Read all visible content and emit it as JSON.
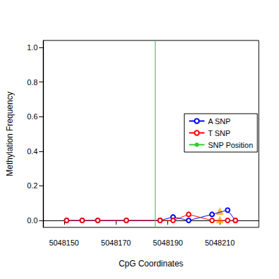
{
  "chart_data": {
    "type": "line",
    "x_label": "CpG Coordinates",
    "y_label": "Methylation Frequency",
    "x": [
      5048151,
      5048157,
      5048163,
      5048174,
      5048187,
      5048192,
      5048198,
      5048207,
      5048213,
      5048216
    ],
    "series": [
      {
        "name": "A SNP",
        "color": "#0000ff",
        "marker": "open_circle",
        "values": [
          0,
          0,
          0,
          0,
          0,
          0.02,
          0,
          0.035,
          0.06,
          0
        ]
      },
      {
        "name": "T SNP",
        "color": "#ff0000",
        "marker": "open_circle",
        "values": [
          0,
          0,
          0,
          0,
          0,
          0,
          0.035,
          0,
          0,
          0
        ]
      },
      {
        "type": "scatter",
        "color": "#ffa500",
        "marker": "triangle",
        "x": [
          5048210,
          5048210
        ],
        "values": [
          0.055,
          0.005
        ]
      }
    ],
    "snp_position": {
      "name": "SNP Position",
      "color": "#33cc33",
      "x": 5048185
    },
    "xlim": [
      5048142,
      5048225
    ],
    "xticks": [
      5048150,
      5048170,
      5048190,
      5048210
    ],
    "ylim": [
      -0.04,
      1.04
    ],
    "yticks": [
      {
        "value": 0,
        "label": "0.0"
      },
      0.2,
      0.4,
      0.6,
      0.8,
      {
        "value": 1,
        "label": "1.0"
      }
    ],
    "legend": "right",
    "grid": false
  }
}
